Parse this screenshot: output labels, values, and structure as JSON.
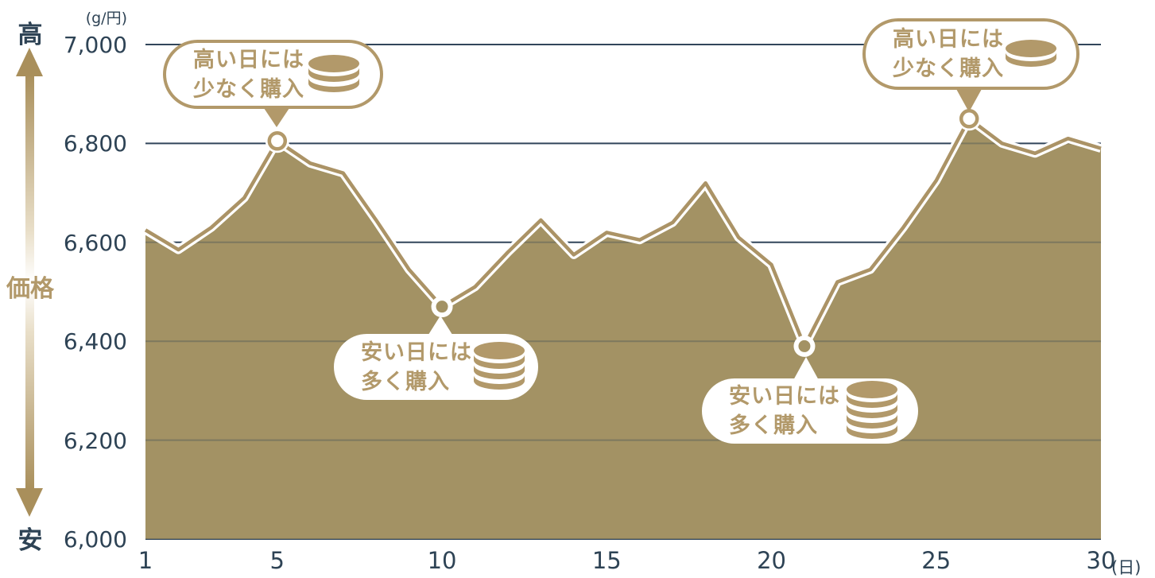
{
  "chart_data": {
    "type": "area",
    "x": [
      1,
      2,
      3,
      4,
      5,
      6,
      7,
      8,
      9,
      10,
      11,
      12,
      13,
      14,
      15,
      16,
      17,
      18,
      19,
      20,
      21,
      22,
      23,
      24,
      25,
      26,
      27,
      28,
      29,
      30
    ],
    "values": [
      6625,
      6585,
      6630,
      6690,
      6805,
      6760,
      6740,
      6645,
      6545,
      6470,
      6510,
      6580,
      6645,
      6575,
      6620,
      6605,
      6640,
      6720,
      6610,
      6555,
      6390,
      6520,
      6545,
      6630,
      6725,
      6850,
      6800,
      6780,
      6810,
      6790
    ],
    "x_ticks": [
      1,
      5,
      10,
      15,
      20,
      25,
      30
    ],
    "y_ticks": [
      "7,000",
      "6,800",
      "6,600",
      "6,400",
      "6,200",
      "6,000"
    ],
    "y_tick_values": [
      7000,
      6800,
      6600,
      6400,
      6200,
      6000
    ],
    "xlim": [
      1,
      30
    ],
    "ylim": [
      6000,
      7000
    ],
    "grid": true,
    "legend": "none",
    "markers": [
      {
        "day": 5,
        "value": 6805,
        "kind": "peak"
      },
      {
        "day": 10,
        "value": 6470,
        "kind": "dip"
      },
      {
        "day": 21,
        "value": 6390,
        "kind": "dip"
      },
      {
        "day": 26,
        "value": 6850,
        "kind": "peak"
      }
    ]
  },
  "axis": {
    "high_label": "高",
    "low_label": "安",
    "price_label": "価格",
    "y_unit": "(g/円)",
    "x_unit": "(日)"
  },
  "callouts": [
    {
      "id": "buy-less-1",
      "kind": "peak",
      "line1": "高い日には",
      "line2": "少なく購入",
      "coin_bands": 2
    },
    {
      "id": "buy-more-1",
      "kind": "dip",
      "line1": "安い日には",
      "line2": "多く購入",
      "coin_bands": 3
    },
    {
      "id": "buy-more-2",
      "kind": "dip",
      "line1": "安い日には",
      "line2": "多く購入",
      "coin_bands": 4
    },
    {
      "id": "buy-less-2",
      "kind": "peak",
      "line1": "高い日には",
      "line2": "少なく購入",
      "coin_bands": 1
    }
  ],
  "colors": {
    "gold_accent": "#b2996a",
    "area_fill": "#a39264",
    "line_gold": "#ab9366",
    "arrow_gold": "#a98f5b",
    "navy_text": "#2e4355",
    "grid_line": "#31455a",
    "grid_on_fill": "rgba(47,66,84,0.32)",
    "marker_white": "#ffffff"
  }
}
